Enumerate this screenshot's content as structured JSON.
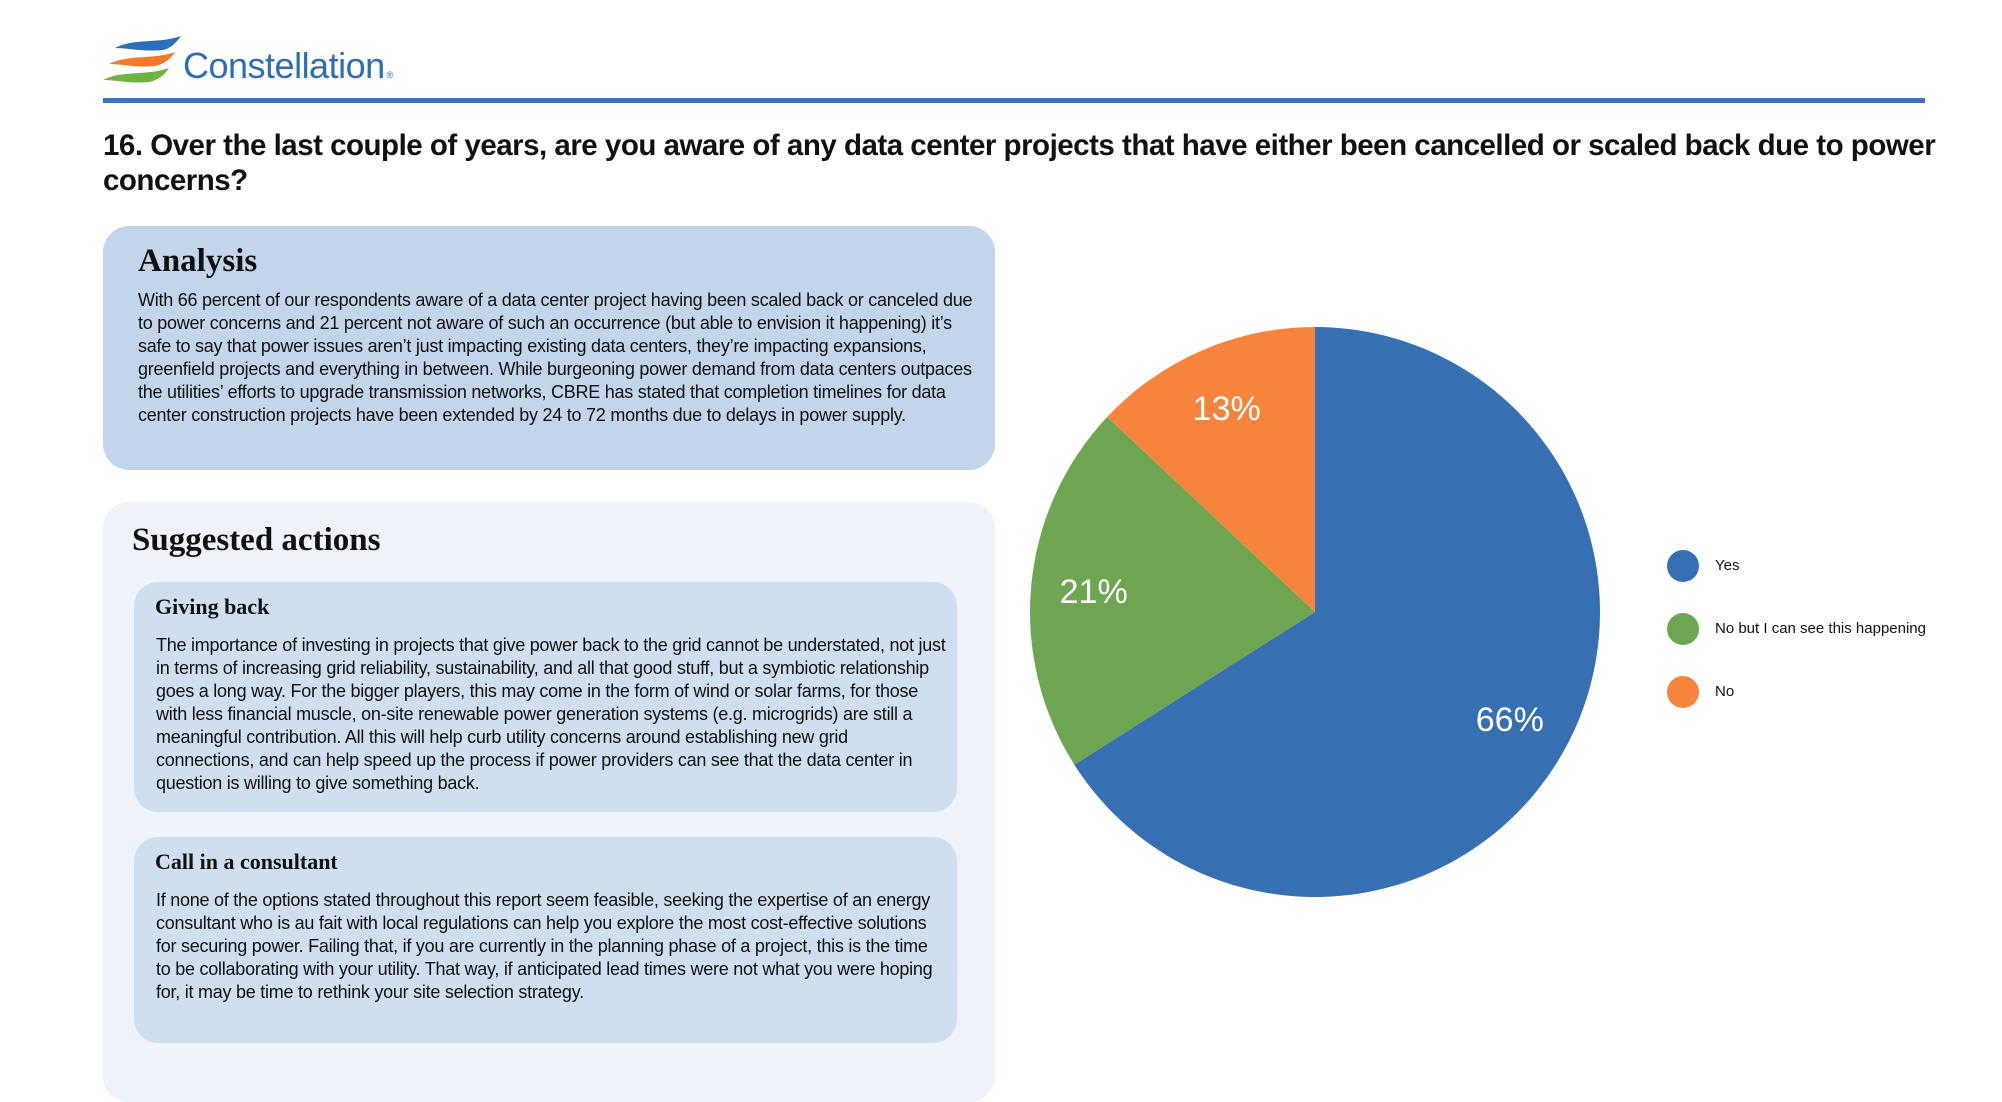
{
  "brand": {
    "name": "Constellation",
    "color": "#2e6db4"
  },
  "title": "16. Over the last couple of years, are you aware of any data center projects that have either been cancelled or scaled back due to power concerns?",
  "analysis": {
    "heading": "Analysis",
    "text": "With 66 percent of our respondents aware of a data center project having been scaled back or canceled due to power concerns and 21 percent not aware of such an occurrence (but able to envision it happening) it’s safe to say that power issues aren’t just impacting existing data centers, they’re impacting expansions, greenfield projects and everything in between. While burgeoning power demand from data centers outpaces the utilities’ efforts to upgrade transmission networks, CBRE has stated that completion timelines for data center construction projects have been extended by 24 to 72 months due to delays in power supply."
  },
  "suggested": {
    "heading": "Suggested actions",
    "cards": [
      {
        "title": "Giving back",
        "text": "The importance of investing in projects that give power back to the grid cannot be understated, not just in terms of increasing grid reliability, sustainability, and all that good stuff, but a symbiotic relationship goes a long way. For the bigger players, this may come in the form of wind or solar farms, for those with less financial muscle, on-site renewable power generation systems (e.g. microgrids) are still a meaningful contribution. All this will help curb utility concerns around establishing new grid connections, and can help speed up the process if power providers can see that the data center in question is willing to give something back."
      },
      {
        "title": "Call in a consultant",
        "text": "If none of the options stated throughout this report seem feasible, seeking the expertise of an energy consultant who is au fait with local regulations can help you explore the most cost-effective solutions for securing power. Failing that, if you are currently in the planning phase of a project, this is the time to be collaborating with your utility. That way, if anticipated lead times were not what you were hoping for, it may be time to rethink your site selection strategy."
      }
    ]
  },
  "chart_data": {
    "type": "pie",
    "title": "",
    "categories": [
      "Yes",
      "No but I can see this happening",
      "No"
    ],
    "values": [
      66,
      21,
      13
    ],
    "labels": [
      "66%",
      "21%",
      "13%"
    ],
    "colors": [
      "#3670b3",
      "#6ea550",
      "#f6843c"
    ],
    "start_angle": "top, clockwise",
    "legend": "right"
  }
}
